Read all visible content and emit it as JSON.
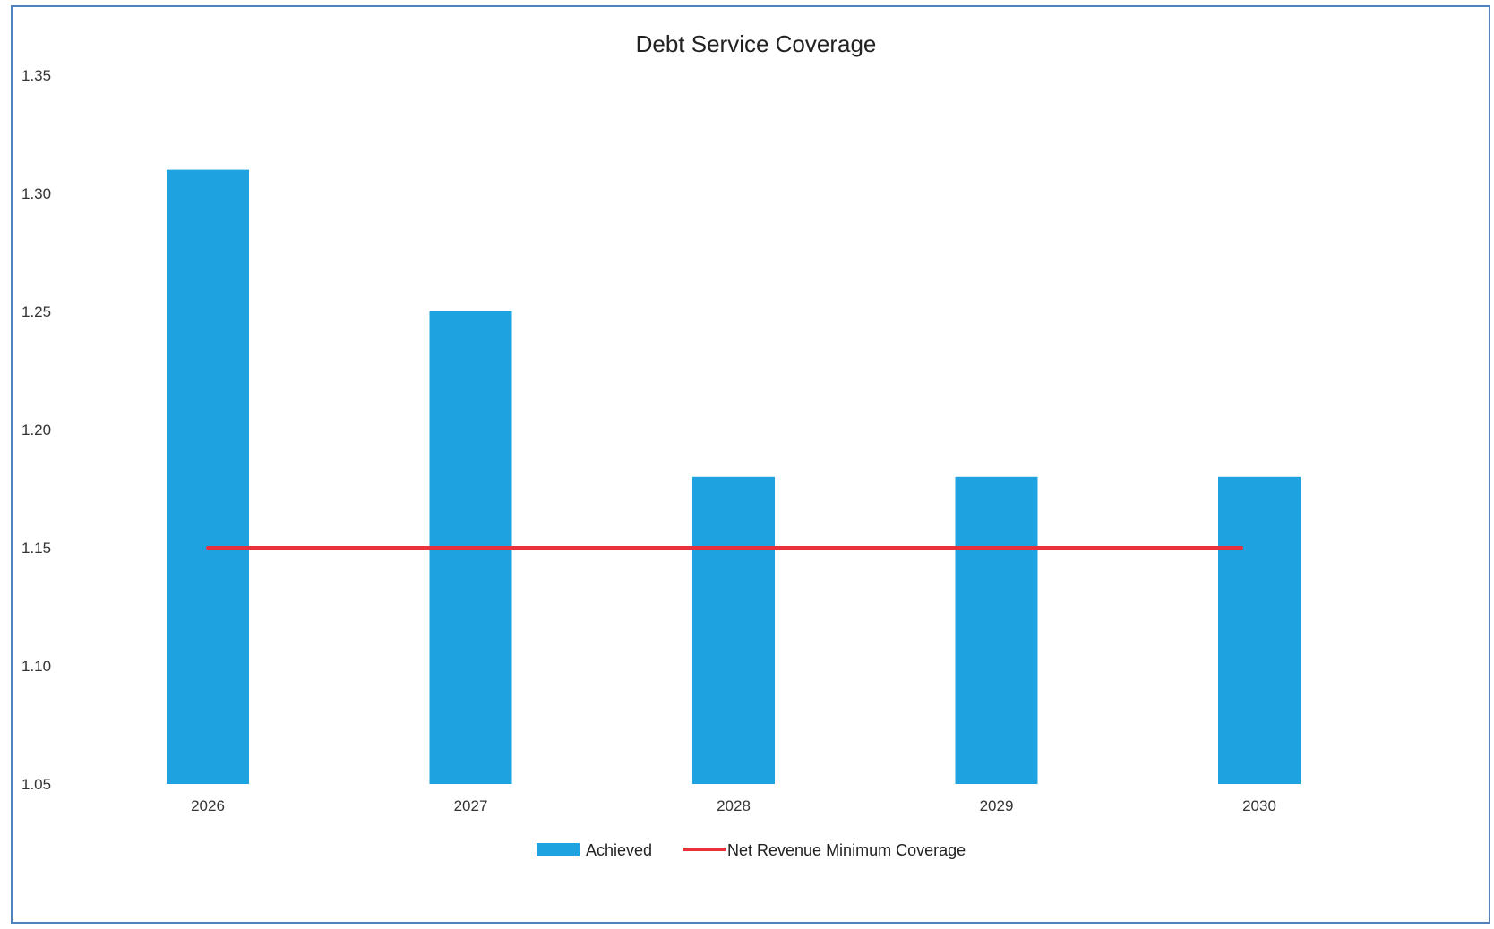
{
  "chart_data": {
    "type": "bar",
    "title": "Debt Service Coverage",
    "categories": [
      "2026",
      "2027",
      "2028",
      "2029",
      "2030"
    ],
    "series": [
      {
        "name": "Achieved",
        "kind": "bar",
        "color": "#1ea3e0",
        "values": [
          1.31,
          1.25,
          1.18,
          1.18,
          1.18
        ]
      },
      {
        "name": "Net Revenue Minimum Coverage",
        "kind": "line",
        "color": "#e8313b",
        "values": [
          1.15,
          1.15,
          1.15,
          1.15,
          1.15
        ]
      }
    ],
    "ylim": [
      1.05,
      1.35
    ],
    "yticks": [
      "1.05",
      "1.10",
      "1.15",
      "1.20",
      "1.25",
      "1.30",
      "1.35"
    ],
    "grid": false,
    "legend_position": "bottom"
  }
}
